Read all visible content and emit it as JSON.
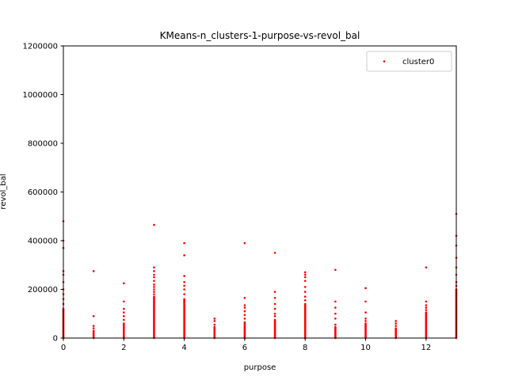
{
  "chart_data": {
    "type": "scatter",
    "title": "KMeans-n_clusters-1-purpose-vs-revol_bal",
    "xlabel": "purpose",
    "ylabel": "revol_bal",
    "xlim": [
      0,
      13
    ],
    "ylim": [
      0,
      1200000
    ],
    "x_ticks": [
      0,
      2,
      4,
      6,
      8,
      10,
      12
    ],
    "y_ticks": [
      0,
      200000,
      400000,
      600000,
      800000,
      1000000,
      1200000
    ],
    "x_tick_labels": [
      "0",
      "2",
      "4",
      "6",
      "8",
      "10",
      "12"
    ],
    "y_tick_labels": [
      "0",
      "200000",
      "400000",
      "600000",
      "800000",
      "1000000",
      "1200000"
    ],
    "grid": false,
    "legend_position": "top-right",
    "color": "#ff0000",
    "series": [
      {
        "name": "cluster0",
        "columns": [
          {
            "x": 0,
            "dense_max": 120000,
            "outliers": [
              140000,
              160000,
              180000,
              200000,
              230000,
              260000,
              275000,
              370000,
              400000,
              480000
            ]
          },
          {
            "x": 1,
            "dense_max": 30000,
            "outliers": [
              40000,
              50000,
              90000,
              275000
            ]
          },
          {
            "x": 2,
            "dense_max": 60000,
            "outliers": [
              75000,
              90000,
              105000,
              120000,
              150000,
              225000
            ]
          },
          {
            "x": 3,
            "dense_max": 170000,
            "outliers": [
              180000,
              190000,
              200000,
              210000,
              220000,
              235000,
              250000,
              260000,
              275000,
              290000,
              465000
            ]
          },
          {
            "x": 4,
            "dense_max": 160000,
            "outliers": [
              180000,
              200000,
              215000,
              230000,
              255000,
              340000,
              390000
            ]
          },
          {
            "x": 5,
            "dense_max": 45000,
            "outliers": [
              55000,
              70000,
              80000
            ]
          },
          {
            "x": 6,
            "dense_max": 65000,
            "outliers": [
              80000,
              95000,
              110000,
              125000,
              135000,
              165000,
              390000
            ]
          },
          {
            "x": 7,
            "dense_max": 75000,
            "outliers": [
              90000,
              100000,
              120000,
              140000,
              165000,
              190000,
              350000
            ]
          },
          {
            "x": 8,
            "dense_max": 140000,
            "outliers": [
              155000,
              170000,
              190000,
              210000,
              235000,
              250000,
              260000,
              270000
            ]
          },
          {
            "x": 9,
            "dense_max": 45000,
            "outliers": [
              55000,
              80000,
              100000,
              125000,
              150000,
              280000
            ]
          },
          {
            "x": 10,
            "dense_max": 60000,
            "outliers": [
              70000,
              80000,
              105000,
              150000,
              205000
            ]
          },
          {
            "x": 11,
            "dense_max": 40000,
            "outliers": [
              50000,
              60000,
              70000
            ]
          },
          {
            "x": 12,
            "dense_max": 105000,
            "outliers": [
              115000,
              125000,
              135000,
              150000,
              290000
            ]
          },
          {
            "x": 13,
            "dense_max": 200000,
            "outliers": [
              215000,
              230000,
              260000,
              290000,
              330000,
              380000,
              420000,
              510000
            ]
          }
        ]
      }
    ]
  }
}
